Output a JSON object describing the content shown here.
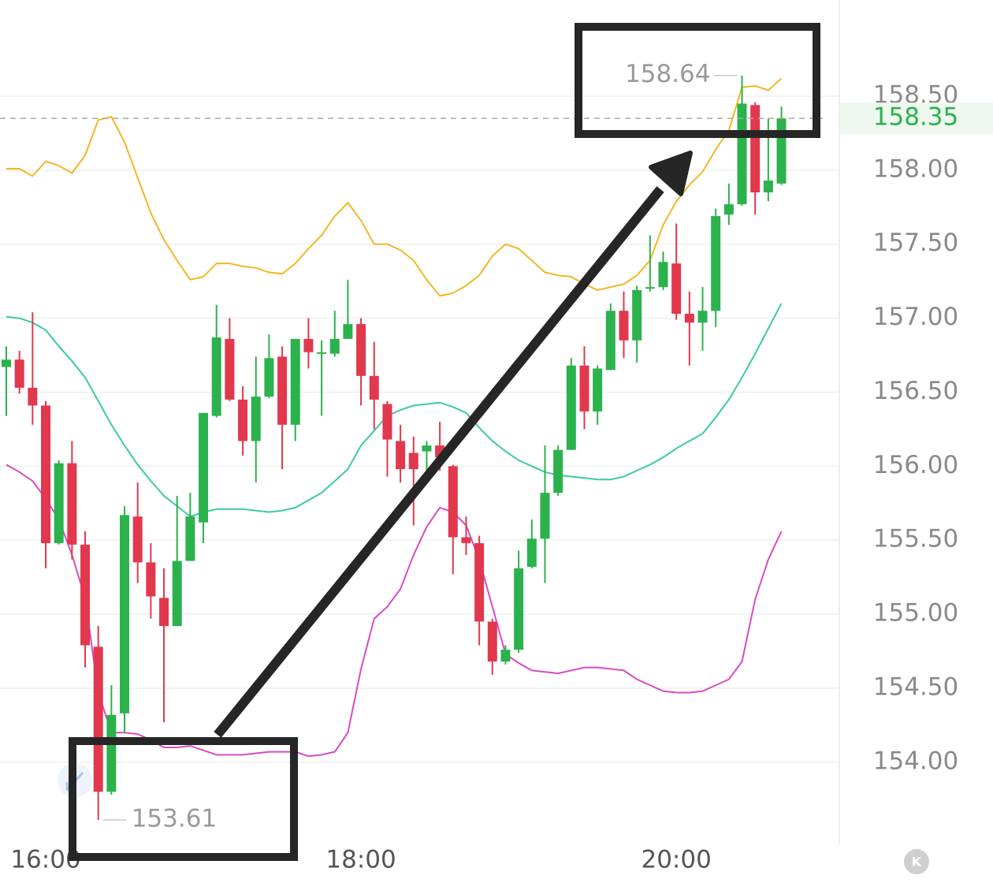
{
  "chart_data": {
    "type": "candlestick",
    "categories": [
      null,
      null,
      null,
      "16:00",
      null,
      null,
      null,
      null,
      null,
      null,
      null,
      null,
      null,
      null,
      null,
      null,
      null,
      null,
      null,
      null,
      null,
      null,
      null,
      null,
      null,
      null,
      null,
      "18:00",
      null,
      null,
      null,
      null,
      null,
      null,
      null,
      null,
      null,
      null,
      null,
      null,
      null,
      null,
      null,
      null,
      null,
      null,
      null,
      null,
      null,
      null,
      null,
      "20:00",
      null,
      null,
      null,
      null,
      null,
      null,
      null,
      null
    ],
    "open": [
      156.67,
      156.72,
      156.53,
      156.41,
      155.48,
      156.02,
      155.47,
      154.78,
      153.8,
      154.33,
      155.66,
      155.35,
      155.11,
      154.92,
      155.36,
      155.62,
      156.34,
      156.86,
      156.45,
      156.17,
      156.47,
      156.74,
      156.28,
      156.86,
      156.76,
      156.76,
      156.86,
      156.96,
      156.61,
      156.42,
      156.17,
      156.09,
      156.1,
      156.14,
      156.0,
      155.52,
      155.48,
      154.95,
      154.68,
      154.76,
      155.32,
      155.51,
      155.82,
      156.11,
      156.68,
      156.37,
      156.65,
      157.05,
      156.85,
      157.2,
      157.21,
      157.37,
      157.03,
      156.97,
      157.05,
      157.7,
      157.77,
      158.44,
      157.85,
      157.91
    ],
    "high": [
      156.81,
      156.78,
      157.04,
      156.44,
      156.04,
      156.17,
      155.56,
      154.92,
      154.52,
      155.73,
      155.89,
      155.48,
      155.31,
      155.8,
      155.82,
      156.36,
      157.09,
      157.0,
      156.54,
      156.74,
      156.89,
      156.81,
      156.86,
      157.0,
      156.85,
      157.05,
      157.26,
      157.0,
      156.84,
      156.44,
      156.28,
      156.2,
      156.17,
      156.3,
      156.01,
      155.66,
      155.53,
      154.97,
      154.79,
      155.43,
      155.64,
      156.14,
      156.14,
      156.73,
      156.81,
      156.68,
      157.1,
      157.18,
      157.22,
      157.56,
      157.45,
      157.64,
      157.18,
      157.21,
      157.74,
      157.91,
      158.64,
      158.46,
      158.35,
      158.43
    ],
    "low": [
      156.34,
      156.49,
      156.28,
      155.31,
      155.47,
      155.37,
      154.64,
      153.61,
      153.78,
      154.2,
      155.21,
      154.97,
      154.27,
      154.92,
      155.36,
      155.48,
      156.33,
      156.44,
      156.07,
      155.89,
      156.46,
      155.98,
      156.17,
      156.66,
      156.34,
      156.74,
      156.86,
      156.41,
      156.25,
      155.93,
      155.89,
      155.6,
      155.93,
      155.97,
      155.27,
      155.4,
      154.79,
      154.59,
      154.66,
      154.74,
      155.31,
      155.21,
      155.8,
      156.11,
      156.25,
      156.28,
      156.65,
      156.73,
      156.7,
      157.18,
      157.19,
      156.99,
      156.68,
      156.78,
      156.94,
      157.63,
      157.76,
      157.7,
      157.79,
      157.9
    ],
    "close": [
      156.72,
      156.53,
      156.41,
      155.48,
      156.02,
      155.47,
      154.79,
      153.8,
      154.32,
      155.67,
      155.35,
      155.12,
      154.92,
      155.36,
      155.66,
      156.36,
      156.87,
      156.45,
      156.17,
      156.47,
      156.73,
      156.28,
      156.86,
      156.77,
      156.77,
      156.86,
      156.96,
      156.61,
      156.45,
      156.18,
      155.98,
      155.98,
      156.14,
      156.06,
      155.52,
      155.48,
      154.95,
      154.68,
      154.76,
      155.31,
      155.51,
      155.82,
      156.11,
      156.68,
      156.37,
      156.66,
      157.05,
      156.85,
      157.19,
      157.21,
      157.38,
      157.03,
      156.97,
      157.05,
      157.69,
      157.77,
      158.45,
      157.85,
      157.93,
      158.35
    ],
    "up_color": "#2bb24c",
    "down_color": "#e2384d",
    "lines": [
      {
        "color": "#f2b824",
        "values": [
          158.01,
          158.01,
          157.96,
          158.06,
          158.03,
          157.98,
          158.1,
          158.34,
          158.36,
          158.19,
          157.95,
          157.71,
          157.53,
          157.39,
          157.26,
          157.28,
          157.37,
          157.37,
          157.35,
          157.34,
          157.31,
          157.3,
          157.37,
          157.47,
          157.56,
          157.69,
          157.78,
          157.66,
          157.5,
          157.5,
          157.46,
          157.39,
          157.26,
          157.15,
          157.17,
          157.22,
          157.29,
          157.42,
          157.5,
          157.47,
          157.39,
          157.31,
          157.29,
          157.28,
          157.23,
          157.19,
          157.21,
          157.23,
          157.29,
          157.39,
          157.63,
          157.79,
          157.9,
          157.99,
          158.14,
          158.27,
          158.56,
          158.57,
          158.54,
          158.62
        ]
      },
      {
        "color": "#3cc9a6",
        "values": [
          157.01,
          157.0,
          156.97,
          156.92,
          156.81,
          156.71,
          156.6,
          156.44,
          156.28,
          156.14,
          156.01,
          155.9,
          155.8,
          155.73,
          155.66,
          155.69,
          155.71,
          155.71,
          155.71,
          155.7,
          155.69,
          155.7,
          155.72,
          155.77,
          155.82,
          155.9,
          155.98,
          156.14,
          156.24,
          156.34,
          156.38,
          156.41,
          156.42,
          156.43,
          156.4,
          156.36,
          156.26,
          156.17,
          156.1,
          156.04,
          156.0,
          155.96,
          155.94,
          155.93,
          155.92,
          155.91,
          155.91,
          155.93,
          155.97,
          156.01,
          156.06,
          156.12,
          156.17,
          156.22,
          156.33,
          156.45,
          156.6,
          156.76,
          156.93,
          157.1
        ]
      },
      {
        "color": "#d94bc4",
        "values": [
          156.01,
          155.96,
          155.9,
          155.78,
          155.64,
          155.4,
          155.11,
          154.47,
          154.2,
          154.2,
          154.19,
          154.15,
          154.1,
          154.1,
          154.11,
          154.08,
          154.05,
          154.05,
          154.05,
          154.06,
          154.07,
          154.07,
          154.07,
          154.04,
          154.05,
          154.07,
          154.2,
          154.63,
          154.97,
          155.05,
          155.17,
          155.4,
          155.59,
          155.72,
          155.69,
          155.6,
          155.37,
          155.05,
          154.73,
          154.67,
          154.62,
          154.61,
          154.6,
          154.62,
          154.64,
          154.64,
          154.63,
          154.62,
          154.56,
          154.52,
          154.48,
          154.47,
          154.47,
          154.48,
          154.52,
          154.56,
          154.68,
          155.1,
          155.37,
          155.56
        ]
      }
    ],
    "ylim": [
      153.45,
      159.15
    ],
    "yticks": [
      {
        "value": 154,
        "label": "154.00"
      },
      {
        "value": 154.5,
        "label": "154.50"
      },
      {
        "value": 155,
        "label": "155.00"
      },
      {
        "value": 155.5,
        "label": "155.50"
      },
      {
        "value": 156,
        "label": "156.00"
      },
      {
        "value": 156.5,
        "label": "156.50"
      },
      {
        "value": 157,
        "label": "157.00"
      },
      {
        "value": 157.5,
        "label": "157.50"
      },
      {
        "value": 158,
        "label": "158.00"
      },
      {
        "value": 158.5,
        "label": "158.50"
      }
    ],
    "grid": true
  },
  "controls": {
    "k_button": "K"
  }
}
